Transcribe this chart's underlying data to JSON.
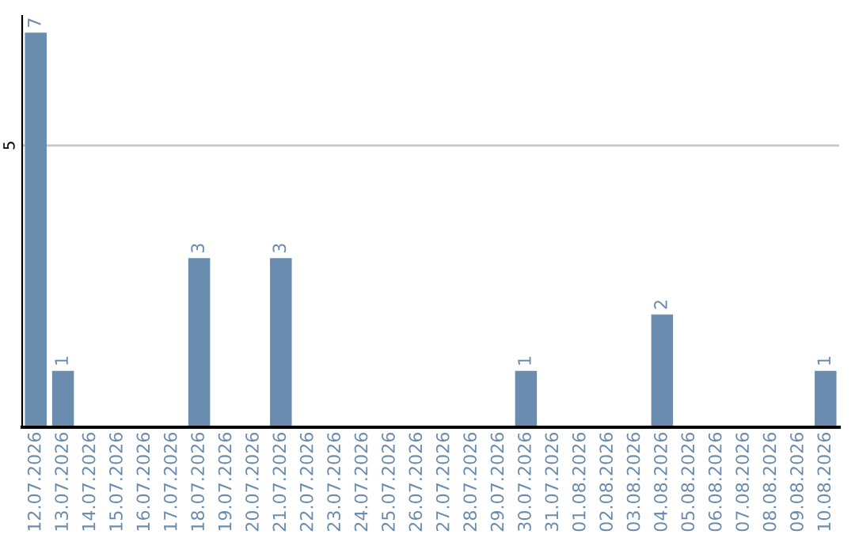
{
  "chart_data": {
    "type": "bar",
    "categories": [
      "12.07.2026",
      "13.07.2026",
      "14.07.2026",
      "15.07.2026",
      "16.07.2026",
      "17.07.2026",
      "18.07.2026",
      "19.07.2026",
      "20.07.2026",
      "21.07.2026",
      "22.07.2026",
      "23.07.2026",
      "24.07.2026",
      "25.07.2026",
      "26.07.2026",
      "27.07.2026",
      "28.07.2026",
      "29.07.2026",
      "30.07.2026",
      "31.07.2026",
      "01.08.2026",
      "02.08.2026",
      "03.08.2026",
      "04.08.2026",
      "05.08.2026",
      "06.08.2026",
      "07.08.2026",
      "08.08.2026",
      "09.08.2026",
      "10.08.2026"
    ],
    "values": [
      7,
      1,
      0,
      0,
      0,
      0,
      3,
      0,
      0,
      3,
      0,
      0,
      0,
      0,
      0,
      0,
      0,
      0,
      1,
      0,
      0,
      0,
      0,
      2,
      0,
      0,
      0,
      0,
      0,
      1
    ],
    "value_labels": [
      "7",
      "1",
      null,
      null,
      null,
      null,
      "3",
      null,
      null,
      "3",
      null,
      null,
      null,
      null,
      null,
      null,
      null,
      null,
      "1",
      null,
      null,
      null,
      null,
      "2",
      null,
      null,
      null,
      null,
      null,
      "1"
    ],
    "color": "#6a8caf",
    "ylim": [
      0,
      7.3
    ],
    "yticks": [
      5
    ],
    "grid": "y"
  }
}
